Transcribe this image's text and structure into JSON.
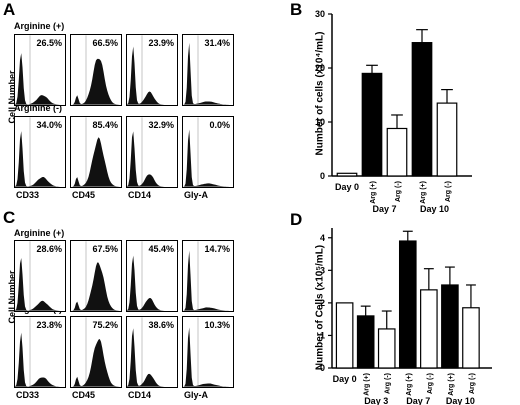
{
  "panels": {
    "A": {
      "label": "A",
      "ylabel": "Cell Number",
      "conditions": [
        "Arginine   (+)",
        "Arginine   (-)"
      ],
      "markers": [
        "CD33",
        "CD45",
        "CD14",
        "Gly-A"
      ],
      "percentages": [
        [
          "26.5%",
          "66.5%",
          "23.9%",
          "31.4%"
        ],
        [
          "34.0%",
          "85.4%",
          "32.9%",
          "0.0%"
        ]
      ]
    },
    "C": {
      "label": "C",
      "ylabel": "Cell Number",
      "conditions": [
        "Arginine   (+)",
        "Arginine   (-)"
      ],
      "markers": [
        "CD33",
        "CD45",
        "CD14",
        "Gly-A"
      ],
      "percentages": [
        [
          "28.6%",
          "67.5%",
          "45.4%",
          "14.7%"
        ],
        [
          "23.8%",
          "75.2%",
          "38.6%",
          "10.3%"
        ]
      ]
    }
  },
  "chart_data": [
    {
      "id": "B",
      "label": "B",
      "type": "bar",
      "ylabel": "Number of cells (x10⁴/mL)",
      "ylim": [
        0,
        30
      ],
      "yticks": [
        0,
        10,
        20,
        30
      ],
      "bars": [
        {
          "group": "Day 0",
          "sub": "",
          "value": 0.5,
          "err": 0,
          "fill": "white"
        },
        {
          "group": "Day 7",
          "sub": "Arg (+)",
          "value": 19,
          "err": 1.5,
          "fill": "black"
        },
        {
          "group": "Day 7",
          "sub": "Arg (-)",
          "value": 8.8,
          "err": 2.5,
          "fill": "white"
        },
        {
          "group": "Day 10",
          "sub": "Arg (+)",
          "value": 24.7,
          "err": 2.4,
          "fill": "black"
        },
        {
          "group": "Day 10",
          "sub": "Arg (-)",
          "value": 13.5,
          "err": 2.5,
          "fill": "white"
        }
      ],
      "groups": [
        "Day 0",
        "Day 7",
        "Day 10"
      ]
    },
    {
      "id": "D",
      "label": "D",
      "type": "bar",
      "ylabel": "Number of Cells (x10⁵/mL)",
      "ylim": [
        0,
        4.3
      ],
      "yticks": [
        0,
        1,
        2,
        3,
        4
      ],
      "bars": [
        {
          "group": "Day 0",
          "sub": "",
          "value": 2.0,
          "err": 0,
          "fill": "white"
        },
        {
          "group": "Day 3",
          "sub": "Arg (+)",
          "value": 1.6,
          "err": 0.3,
          "fill": "black"
        },
        {
          "group": "Day 3",
          "sub": "Arg (-)",
          "value": 1.2,
          "err": 0.55,
          "fill": "white"
        },
        {
          "group": "Day 7",
          "sub": "Arg (+)",
          "value": 3.9,
          "err": 0.3,
          "fill": "black"
        },
        {
          "group": "Day 7",
          "sub": "Arg (-)",
          "value": 2.4,
          "err": 0.65,
          "fill": "white"
        },
        {
          "group": "Day 10",
          "sub": "Arg (+)",
          "value": 2.55,
          "err": 0.55,
          "fill": "black"
        },
        {
          "group": "Day 10",
          "sub": "Arg (-)",
          "value": 1.85,
          "err": 0.7,
          "fill": "white"
        }
      ],
      "groups": [
        "Day 0",
        "Day 3",
        "Day 7",
        "Day 10"
      ]
    }
  ]
}
